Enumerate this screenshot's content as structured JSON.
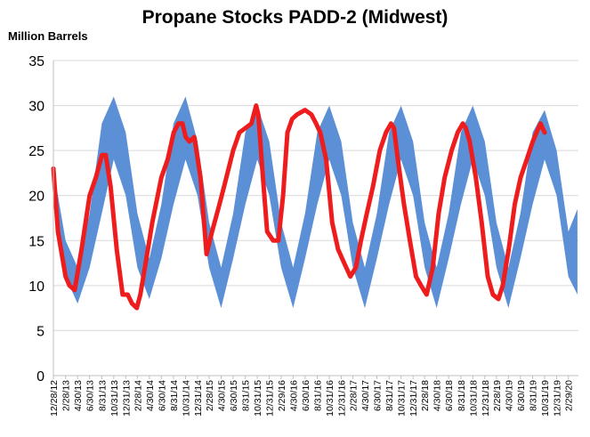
{
  "chart_data": {
    "type": "area",
    "title": "Propane Stocks PADD-2 (Midwest)",
    "ylabel": "Million Barrels",
    "xlabel": "",
    "ylim": [
      0,
      35
    ],
    "yticks": [
      0,
      5,
      10,
      15,
      20,
      25,
      30,
      35
    ],
    "x_tick_labels": [
      "12/28/12",
      "2/28/13",
      "4/30/13",
      "6/30/13",
      "8/31/13",
      "10/31/13",
      "12/31/13",
      "2/28/14",
      "4/30/14",
      "6/30/14",
      "8/31/14",
      "10/31/14",
      "12/31/14",
      "2/28/15",
      "4/30/15",
      "6/30/15",
      "8/31/15",
      "10/31/15",
      "12/31/15",
      "2/29/16",
      "4/30/16",
      "6/30/16",
      "8/31/16",
      "10/31/16",
      "12/31/16",
      "2/28/17",
      "4/30/17",
      "6/30/17",
      "8/31/17",
      "10/31/17",
      "12/31/17",
      "2/28/18",
      "4/30/18",
      "6/30/18",
      "8/31/18",
      "10/31/18",
      "12/31/18",
      "2/28/19",
      "4/30/19",
      "6/30/19",
      "8/31/19",
      "10/31/19",
      "12/31/19",
      "2/29/20"
    ],
    "grid": true,
    "colors": {
      "band": "#5b8fd6",
      "line": "#ee1c1c",
      "grid": "#d9d9d9"
    },
    "series": [
      {
        "kind": "range",
        "x": [
          "2012-12-28",
          "2013-02-28",
          "2013-04-30",
          "2013-06-30",
          "2013-08-31",
          "2013-10-31",
          "2013-12-31",
          "2014-02-28",
          "2014-04-30",
          "2014-06-30",
          "2014-08-31",
          "2014-10-31",
          "2014-12-31",
          "2015-02-28",
          "2015-04-30",
          "2015-06-30",
          "2015-08-31",
          "2015-10-31",
          "2015-12-31",
          "2016-02-29",
          "2016-04-30",
          "2016-06-30",
          "2016-08-31",
          "2016-10-31",
          "2016-12-31",
          "2017-02-28",
          "2017-04-30",
          "2017-06-30",
          "2017-08-31",
          "2017-10-31",
          "2017-12-31",
          "2018-02-28",
          "2018-04-30",
          "2018-06-30",
          "2018-08-31",
          "2018-10-31",
          "2018-12-31",
          "2019-02-28",
          "2019-04-30",
          "2019-06-30",
          "2019-08-31",
          "2019-10-31",
          "2019-12-31",
          "2020-02-29",
          "2020-04-15"
        ],
        "low": [
          19,
          11,
          8,
          12,
          18,
          24,
          20,
          12,
          8.5,
          13,
          19,
          24,
          20,
          12,
          7.5,
          13,
          19,
          24,
          20,
          12,
          7.5,
          13,
          19,
          24,
          20,
          12,
          7.5,
          13,
          19,
          24,
          20,
          12,
          7.5,
          13,
          19,
          24,
          20,
          12,
          7.5,
          13,
          19,
          24,
          20,
          11,
          9
        ],
        "high": [
          23,
          15,
          12,
          18,
          28,
          31,
          27,
          18,
          13,
          19,
          28,
          31,
          26,
          17,
          12,
          18,
          27,
          30,
          26,
          17,
          12,
          18,
          27,
          30,
          26,
          17,
          12,
          18,
          27,
          30,
          26,
          17,
          12,
          18,
          27,
          30,
          26,
          17,
          12,
          18,
          27,
          29.5,
          25,
          16,
          18.5
        ]
      },
      {
        "kind": "line",
        "x": [
          "2012-12-28",
          "2013-01-20",
          "2013-02-28",
          "2013-03-20",
          "2013-04-15",
          "2013-05-20",
          "2013-06-30",
          "2013-08-01",
          "2013-09-01",
          "2013-09-20",
          "2013-10-15",
          "2013-11-15",
          "2013-12-15",
          "2014-01-10",
          "2014-02-01",
          "2014-02-25",
          "2014-03-15",
          "2014-04-15",
          "2014-05-15",
          "2014-06-30",
          "2014-08-01",
          "2014-09-01",
          "2014-09-25",
          "2014-10-15",
          "2014-11-01",
          "2014-11-20",
          "2014-12-15",
          "2015-01-15",
          "2015-02-15",
          "2015-03-15",
          "2015-04-15",
          "2015-05-15",
          "2015-06-30",
          "2015-08-01",
          "2015-09-01",
          "2015-10-01",
          "2015-10-25",
          "2015-11-05",
          "2015-11-25",
          "2015-12-20",
          "2016-01-20",
          "2016-02-15",
          "2016-03-10",
          "2016-04-01",
          "2016-04-25",
          "2016-05-20",
          "2016-06-30",
          "2016-08-01",
          "2016-08-25",
          "2016-09-15",
          "2016-10-15",
          "2016-11-15",
          "2016-12-15",
          "2017-01-15",
          "2017-02-15",
          "2017-03-15",
          "2017-04-10",
          "2017-05-10",
          "2017-06-10",
          "2017-07-15",
          "2017-08-15",
          "2017-09-10",
          "2017-09-25",
          "2017-10-15",
          "2017-11-15",
          "2017-12-15",
          "2018-01-15",
          "2018-02-10",
          "2018-03-10",
          "2018-04-10",
          "2018-05-10",
          "2018-06-10",
          "2018-07-15",
          "2018-08-15",
          "2018-09-10",
          "2018-09-25",
          "2018-10-15",
          "2018-11-15",
          "2018-12-15",
          "2019-01-15",
          "2019-02-10",
          "2019-03-10",
          "2019-04-01",
          "2019-05-01",
          "2019-06-01",
          "2019-07-01",
          "2019-08-01",
          "2019-09-01",
          "2019-09-20",
          "2019-10-10",
          "2019-10-31"
        ],
        "y": [
          23,
          16,
          11,
          10,
          9.5,
          14,
          20,
          22,
          24.5,
          24.5,
          21,
          14,
          9,
          9,
          8,
          7.5,
          9,
          13,
          17,
          22,
          24,
          27,
          28,
          28,
          26.5,
          26,
          26.5,
          22,
          13.5,
          16,
          18.5,
          21,
          25,
          27,
          27.5,
          28,
          30,
          29,
          23,
          16,
          15,
          15,
          20,
          27,
          28.5,
          29,
          29.5,
          29,
          28,
          27,
          24,
          17,
          14,
          12.5,
          11,
          12,
          15,
          18,
          21,
          25,
          27,
          28,
          27.5,
          24,
          19,
          15,
          11,
          10,
          9,
          12,
          18,
          22,
          25,
          27,
          28,
          27.5,
          26,
          22,
          17,
          11,
          9,
          8.5,
          10,
          14,
          19,
          22,
          24,
          26,
          27,
          28,
          27
        ]
      }
    ]
  }
}
